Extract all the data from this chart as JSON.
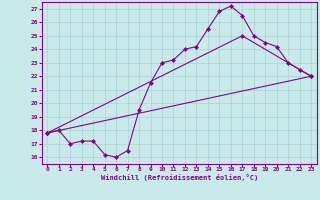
{
  "xlabel": "Windchill (Refroidissement éolien,°C)",
  "xlim": [
    -0.5,
    23.5
  ],
  "ylim": [
    15.5,
    27.5
  ],
  "xticks": [
    0,
    1,
    2,
    3,
    4,
    5,
    6,
    7,
    8,
    9,
    10,
    11,
    12,
    13,
    14,
    15,
    16,
    17,
    18,
    19,
    20,
    21,
    22,
    23
  ],
  "yticks": [
    16,
    17,
    18,
    19,
    20,
    21,
    22,
    23,
    24,
    25,
    26,
    27
  ],
  "bg_color": "#c8eaea",
  "line_color": "#880088",
  "grid_color": "#aad4d4",
  "line1_x": [
    0,
    1,
    2,
    3,
    4,
    5,
    6,
    7,
    8,
    9,
    10,
    11,
    12,
    13,
    14,
    15,
    16,
    17,
    18,
    19,
    20,
    21,
    22,
    23
  ],
  "line1_y": [
    17.8,
    18.0,
    17.0,
    17.2,
    17.2,
    16.2,
    16.0,
    16.5,
    19.5,
    21.5,
    23.0,
    23.2,
    24.0,
    24.2,
    25.5,
    26.8,
    27.2,
    26.5,
    25.0,
    24.5,
    24.2,
    23.0,
    22.5,
    22.0
  ],
  "line2_x": [
    0,
    23
  ],
  "line2_y": [
    17.8,
    22.0
  ],
  "line3_x": [
    0,
    17,
    23
  ],
  "line3_y": [
    17.8,
    25.0,
    22.0
  ]
}
